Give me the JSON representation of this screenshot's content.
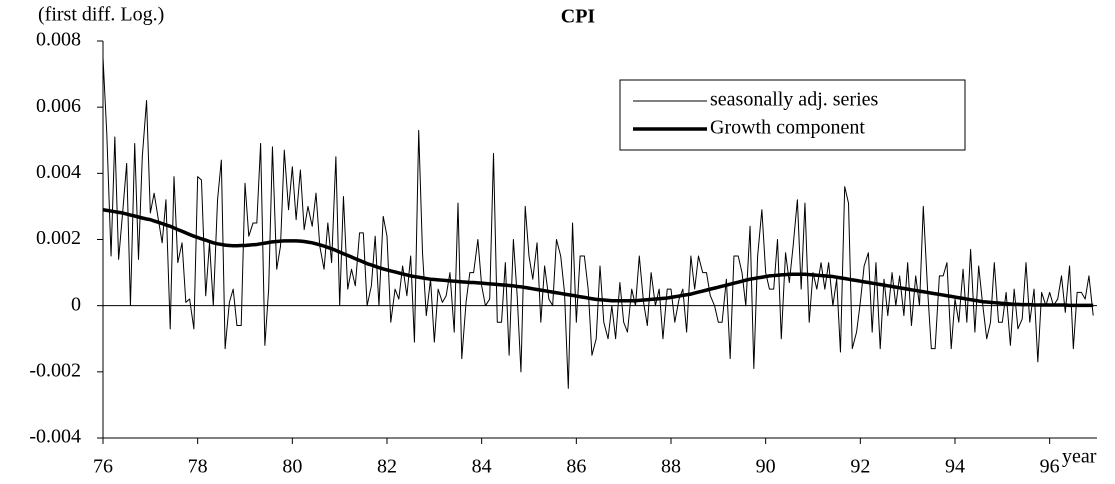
{
  "chart_data": {
    "type": "line",
    "title": "CPI",
    "y_label": "(first diff. Log.)",
    "x_label": "year",
    "xlim": [
      76,
      97
    ],
    "xticks": [
      76,
      78,
      80,
      82,
      84,
      86,
      88,
      90,
      92,
      94,
      96
    ],
    "ylim": [
      -0.004,
      0.008
    ],
    "yticks": [
      -0.004,
      -0.002,
      0,
      0.002,
      0.004,
      0.006,
      0.008
    ],
    "legend": "upper right",
    "x": [
      76,
      76.08,
      76.17,
      76.25,
      76.33,
      76.42,
      76.5,
      76.58,
      76.67,
      76.75,
      76.83,
      76.92,
      77,
      77.08,
      77.17,
      77.25,
      77.33,
      77.42,
      77.5,
      77.58,
      77.67,
      77.75,
      77.83,
      77.92,
      78,
      78.08,
      78.17,
      78.25,
      78.33,
      78.42,
      78.5,
      78.58,
      78.67,
      78.75,
      78.83,
      78.92,
      79,
      79.08,
      79.17,
      79.25,
      79.33,
      79.42,
      79.5,
      79.58,
      79.67,
      79.75,
      79.83,
      79.92,
      80,
      80.08,
      80.17,
      80.25,
      80.33,
      80.42,
      80.5,
      80.58,
      80.67,
      80.75,
      80.83,
      80.92,
      81,
      81.08,
      81.17,
      81.25,
      81.33,
      81.42,
      81.5,
      81.58,
      81.67,
      81.75,
      81.83,
      81.92,
      82,
      82.08,
      82.17,
      82.25,
      82.33,
      82.42,
      82.5,
      82.58,
      82.67,
      82.75,
      82.83,
      82.92,
      83,
      83.08,
      83.17,
      83.25,
      83.33,
      83.42,
      83.5,
      83.58,
      83.67,
      83.75,
      83.83,
      83.92,
      84,
      84.08,
      84.17,
      84.25,
      84.33,
      84.42,
      84.5,
      84.58,
      84.67,
      84.75,
      84.83,
      84.92,
      85,
      85.08,
      85.17,
      85.25,
      85.33,
      85.42,
      85.5,
      85.58,
      85.67,
      85.75,
      85.83,
      85.92,
      86,
      86.08,
      86.17,
      86.25,
      86.33,
      86.42,
      86.5,
      86.58,
      86.67,
      86.75,
      86.83,
      86.92,
      87,
      87.08,
      87.17,
      87.25,
      87.33,
      87.42,
      87.5,
      87.58,
      87.67,
      87.75,
      87.83,
      87.92,
      88,
      88.08,
      88.17,
      88.25,
      88.33,
      88.42,
      88.5,
      88.58,
      88.67,
      88.75,
      88.83,
      88.92,
      89,
      89.08,
      89.17,
      89.25,
      89.33,
      89.42,
      89.5,
      89.58,
      89.67,
      89.75,
      89.83,
      89.92,
      90,
      90.08,
      90.17,
      90.25,
      90.33,
      90.42,
      90.5,
      90.58,
      90.67,
      90.75,
      90.83,
      90.92,
      91,
      91.08,
      91.17,
      91.25,
      91.33,
      91.42,
      91.5,
      91.58,
      91.67,
      91.75,
      91.83,
      91.92,
      92,
      92.08,
      92.17,
      92.25,
      92.33,
      92.42,
      92.5,
      92.58,
      92.67,
      92.75,
      92.83,
      92.92,
      93,
      93.08,
      93.17,
      93.25,
      93.33,
      93.42,
      93.5,
      93.58,
      93.67,
      93.75,
      93.83,
      93.92,
      94,
      94.08,
      94.17,
      94.25,
      94.33,
      94.42,
      94.5,
      94.58,
      94.67,
      94.75,
      94.83,
      94.92,
      95,
      95.08,
      95.17,
      95.25,
      95.33,
      95.42,
      95.5,
      95.58,
      95.67,
      95.75,
      95.83,
      95.92,
      96,
      96.08,
      96.17,
      96.25,
      96.33,
      96.42,
      96.5,
      96.58,
      96.67,
      96.75,
      96.83,
      96.92
    ],
    "series": [
      {
        "name": "seasonally adj. series",
        "color": "#000000",
        "line_width": 1,
        "values": [
          0.0075,
          0.0052,
          0.0015,
          0.0051,
          0.0014,
          0.0029,
          0.0043,
          0,
          0.0049,
          0.0014,
          0.0045,
          0.0062,
          0.0028,
          0.0034,
          0.0026,
          0.0019,
          0.0032,
          -0.0007,
          0.0039,
          0.0013,
          0.0019,
          0.0001,
          0.0002,
          -0.0007,
          0.0039,
          0.0038,
          0.0003,
          0.0019,
          0,
          0.0032,
          0.0044,
          -0.0013,
          0.0001,
          0.0005,
          -0.0006,
          -0.0006,
          0.0037,
          0.0021,
          0.0025,
          0.0025,
          0.0049,
          -0.0012,
          0.0005,
          0.0048,
          0.0011,
          0.0018,
          0.0047,
          0.0029,
          0.0042,
          0.0026,
          0.0041,
          0.0023,
          0.003,
          0.0024,
          0.0034,
          0.0018,
          0.0011,
          0.0025,
          0.0013,
          0.0045,
          0,
          0.0033,
          0.0005,
          0.0011,
          0.0006,
          0.0022,
          0.0022,
          0,
          0.0006,
          0.0021,
          0,
          0.0027,
          0.0021,
          -0.0005,
          0.0005,
          0.0002,
          0.0012,
          0.0003,
          0.0015,
          -0.0011,
          0.0053,
          0.0016,
          -0.0003,
          0.0008,
          -0.0011,
          0.0005,
          0.0001,
          0.0003,
          0.001,
          -0.0008,
          0.0031,
          -0.0016,
          0.0001,
          0.001,
          0.001,
          0.002,
          0.0006,
          0,
          0.0002,
          0.0046,
          -0.0005,
          -0.0005,
          0.0013,
          -0.0015,
          0.002,
          0.0003,
          -0.002,
          0.003,
          0.0015,
          0.0008,
          0.0019,
          -0.0005,
          0.0012,
          0.0002,
          0,
          0.002,
          0.0015,
          0.0004,
          -0.0025,
          0.0025,
          -0.0005,
          0.0015,
          0.0015,
          0.0005,
          -0.0015,
          -0.001,
          0.0012,
          -0.0005,
          -0.001,
          0,
          -0.001,
          0.0007,
          -0.0005,
          -0.0008,
          0.0005,
          0,
          0.0015,
          0.0001,
          -0.0006,
          0.001,
          0,
          0.0005,
          -0.001,
          0.0005,
          0.0005,
          -0.0005,
          0.0002,
          0.0005,
          -0.0008,
          0.0015,
          0.0005,
          0.0015,
          0.001,
          0.001,
          0.0003,
          0,
          -0.0005,
          -0.0005,
          0.0008,
          -0.0016,
          0.0015,
          0.0015,
          0.001,
          0,
          0.0024,
          -0.0019,
          0.0015,
          0.0029,
          0.001,
          0.0005,
          0.0005,
          0.002,
          -0.001,
          0.0016,
          0.0007,
          0.0018,
          0.0032,
          0.0005,
          0.0031,
          -0.0005,
          0.001,
          0.0005,
          0.0013,
          0.0005,
          0.0013,
          0,
          0.0008,
          -0.0014,
          0.0036,
          0.0031,
          -0.0013,
          -0.0008,
          0.0001,
          0.0012,
          0.0016,
          -0.0008,
          0.0013,
          -0.0013,
          0.0008,
          -0.0003,
          0.001,
          0,
          0.0009,
          -0.0003,
          0.0013,
          -0.0006,
          0.0009,
          0,
          0.003,
          0.0005,
          -0.0013,
          -0.0013,
          0.0009,
          0.0009,
          0.0013,
          -0.0013,
          0.0002,
          -0.0005,
          0.0011,
          -0.0005,
          0.0017,
          -0.0008,
          0.0012,
          0.0001,
          -0.001,
          -0.0005,
          0.0013,
          -0.0005,
          -0.0005,
          0.0004,
          -0.0012,
          0.0005,
          -0.0007,
          -0.0004,
          0.0013,
          -0.0005,
          0.0005,
          -0.0017,
          0.0004,
          0,
          0.0004,
          0,
          0.0002,
          0.0009,
          -0.0002,
          0.0012,
          -0.0013,
          0.0004,
          0.0004,
          0.0002,
          0.0009,
          -0.0003
        ]
      },
      {
        "name": "Growth component",
        "color": "#000000",
        "line_width": 3.5,
        "values": [
          0.0029,
          0.00288,
          0.00286,
          0.00284,
          0.00282,
          0.0028,
          0.00277,
          0.00274,
          0.00271,
          0.00268,
          0.00265,
          0.00262,
          0.0026,
          0.00256,
          0.00252,
          0.00248,
          0.00244,
          0.0024,
          0.00235,
          0.0023,
          0.00225,
          0.0022,
          0.00215,
          0.0021,
          0.00206,
          0.00202,
          0.00198,
          0.00194,
          0.0019,
          0.00187,
          0.00185,
          0.00183,
          0.00182,
          0.00181,
          0.00181,
          0.00182,
          0.00182,
          0.00183,
          0.00184,
          0.00185,
          0.00187,
          0.00189,
          0.00191,
          0.00193,
          0.00194,
          0.00195,
          0.00196,
          0.00196,
          0.00196,
          0.00196,
          0.00195,
          0.00194,
          0.00192,
          0.0019,
          0.00187,
          0.00184,
          0.0018,
          0.00176,
          0.00172,
          0.00167,
          0.00162,
          0.00157,
          0.00152,
          0.00147,
          0.00142,
          0.00137,
          0.00132,
          0.00127,
          0.00123,
          0.00119,
          0.00115,
          0.00111,
          0.00108,
          0.00105,
          0.00102,
          0.00099,
          0.00096,
          0.00093,
          0.0009,
          0.00088,
          0.00086,
          0.00084,
          0.00082,
          0.0008,
          0.00079,
          0.00078,
          0.00077,
          0.00076,
          0.00075,
          0.00074,
          0.00073,
          0.00072,
          0.00071,
          0.0007,
          0.0007,
          0.00069,
          0.00068,
          0.00067,
          0.00066,
          0.00065,
          0.00064,
          0.00063,
          0.00062,
          0.00061,
          0.0006,
          0.00058,
          0.00057,
          0.00055,
          0.00053,
          0.00051,
          0.00049,
          0.00047,
          0.00045,
          0.00043,
          0.00041,
          0.00039,
          0.00037,
          0.00035,
          0.00033,
          0.00031,
          0.00029,
          0.00027,
          0.00025,
          0.00023,
          0.00021,
          0.00019,
          0.00018,
          0.00017,
          0.00016,
          0.00015,
          0.00015,
          0.00015,
          0.00015,
          0.00015,
          0.00015,
          0.00015,
          0.00016,
          0.00017,
          0.00018,
          0.00019,
          0.0002,
          0.00021,
          0.00022,
          0.00023,
          0.00025,
          0.00027,
          0.00029,
          0.00031,
          0.00033,
          0.00035,
          0.00038,
          0.00041,
          0.00044,
          0.00047,
          0.0005,
          0.00053,
          0.00056,
          0.00059,
          0.00062,
          0.00065,
          0.00068,
          0.00071,
          0.00074,
          0.00077,
          0.0008,
          0.00082,
          0.00084,
          0.00086,
          0.00088,
          0.0009,
          0.00091,
          0.00092,
          0.00093,
          0.00094,
          0.00095,
          0.00095,
          0.00095,
          0.00095,
          0.00095,
          0.00094,
          0.00093,
          0.00092,
          0.00091,
          0.0009,
          0.00089,
          0.00088,
          0.00086,
          0.00084,
          0.00082,
          0.0008,
          0.00078,
          0.00076,
          0.00074,
          0.00072,
          0.0007,
          0.00068,
          0.00066,
          0.00064,
          0.00062,
          0.0006,
          0.00058,
          0.00056,
          0.00054,
          0.00052,
          0.0005,
          0.00048,
          0.00046,
          0.00044,
          0.00042,
          0.0004,
          0.00038,
          0.00036,
          0.00034,
          0.00032,
          0.0003,
          0.00028,
          0.00026,
          0.00024,
          0.00022,
          0.0002,
          0.00018,
          0.00016,
          0.00014,
          0.00012,
          0.00011,
          0.0001,
          9e-05,
          8e-05,
          7e-05,
          6e-05,
          5e-05,
          4e-05,
          4e-05,
          3e-05,
          3e-05,
          3e-05,
          2e-05,
          2e-05,
          2e-05,
          2e-05,
          2e-05,
          2e-05,
          2e-05,
          2e-05,
          2e-05,
          1e-05,
          1e-05,
          1e-05,
          1e-05,
          1e-05,
          1e-05,
          1e-05
        ]
      }
    ]
  }
}
